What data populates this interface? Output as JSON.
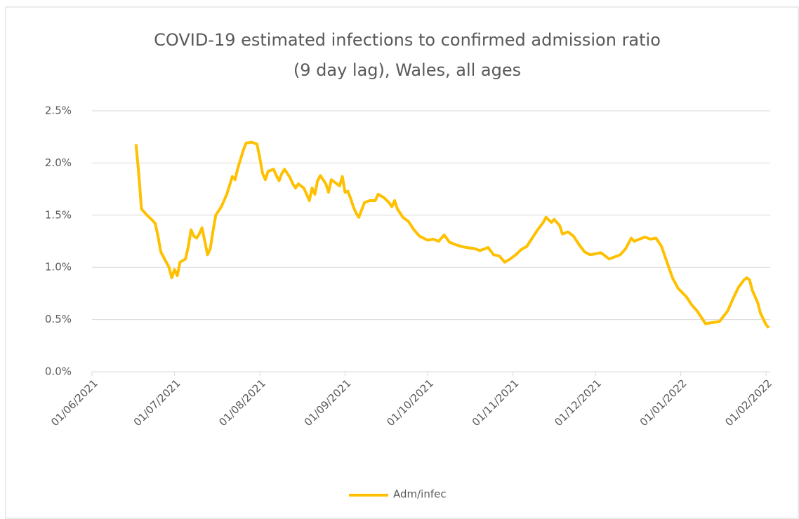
{
  "chart_data": {
    "type": "line",
    "title": "COVID-19 estimated infections to confirmed  admission ratio",
    "subtitle": "(9 day lag), Wales, all ages",
    "x": [
      "2021-06-17",
      "2021-06-18",
      "2021-06-19",
      "2021-06-21",
      "2021-06-23",
      "2021-06-24",
      "2021-06-25",
      "2021-06-26",
      "2021-06-28",
      "2021-06-29",
      "2021-06-30",
      "2021-07-01",
      "2021-07-02",
      "2021-07-03",
      "2021-07-05",
      "2021-07-06",
      "2021-07-07",
      "2021-07-08",
      "2021-07-09",
      "2021-07-10",
      "2021-07-11",
      "2021-07-12",
      "2021-07-13",
      "2021-07-14",
      "2021-07-15",
      "2021-07-16",
      "2021-07-18",
      "2021-07-20",
      "2021-07-22",
      "2021-07-23",
      "2021-07-24",
      "2021-07-26",
      "2021-07-27",
      "2021-07-29",
      "2021-07-31",
      "2021-08-01",
      "2021-08-02",
      "2021-08-03",
      "2021-08-04",
      "2021-08-06",
      "2021-08-07",
      "2021-08-08",
      "2021-08-09",
      "2021-08-10",
      "2021-08-12",
      "2021-08-13",
      "2021-08-14",
      "2021-08-15",
      "2021-08-17",
      "2021-08-18",
      "2021-08-19",
      "2021-08-20",
      "2021-08-21",
      "2021-08-22",
      "2021-08-23",
      "2021-08-25",
      "2021-08-26",
      "2021-08-27",
      "2021-08-29",
      "2021-08-30",
      "2021-08-31",
      "2021-09-01",
      "2021-09-02",
      "2021-09-03",
      "2021-09-04",
      "2021-09-05",
      "2021-09-06",
      "2021-09-07",
      "2021-09-08",
      "2021-09-10",
      "2021-09-12",
      "2021-09-13",
      "2021-09-15",
      "2021-09-17",
      "2021-09-18",
      "2021-09-19",
      "2021-09-20",
      "2021-09-22",
      "2021-09-24",
      "2021-09-26",
      "2021-09-28",
      "2021-10-01",
      "2021-10-03",
      "2021-10-05",
      "2021-10-07",
      "2021-10-09",
      "2021-10-12",
      "2021-10-15",
      "2021-10-18",
      "2021-10-20",
      "2021-10-23",
      "2021-10-25",
      "2021-10-27",
      "2021-10-29",
      "2021-10-31",
      "2021-11-02",
      "2021-11-04",
      "2021-11-06",
      "2021-11-08",
      "2021-11-10",
      "2021-11-12",
      "2021-11-13",
      "2021-11-15",
      "2021-11-16",
      "2021-11-18",
      "2021-11-19",
      "2021-11-21",
      "2021-11-23",
      "2021-11-25",
      "2021-11-27",
      "2021-11-29",
      "2021-12-01",
      "2021-12-03",
      "2021-12-04",
      "2021-12-06",
      "2021-12-08",
      "2021-12-10",
      "2021-12-12",
      "2021-12-14",
      "2021-12-15",
      "2021-12-17",
      "2021-12-19",
      "2021-12-21",
      "2021-12-23",
      "2021-12-25",
      "2021-12-27",
      "2021-12-29",
      "2021-12-31",
      "2022-01-03",
      "2022-01-05",
      "2022-01-07",
      "2022-01-09",
      "2022-01-10",
      "2022-01-12",
      "2022-01-15",
      "2022-01-18",
      "2022-01-20",
      "2022-01-22",
      "2022-01-24",
      "2022-01-25",
      "2022-01-26",
      "2022-01-27",
      "2022-01-29",
      "2022-01-30",
      "2022-02-01",
      "2022-02-02"
    ],
    "series": [
      {
        "name": "Adm/infec",
        "color": "#FFC000",
        "values": [
          2.18,
          1.9,
          1.56,
          1.5,
          1.45,
          1.42,
          1.3,
          1.15,
          1.05,
          1.0,
          0.9,
          0.98,
          0.92,
          1.05,
          1.08,
          1.2,
          1.36,
          1.3,
          1.28,
          1.32,
          1.38,
          1.25,
          1.12,
          1.18,
          1.35,
          1.5,
          1.58,
          1.7,
          1.87,
          1.84,
          1.95,
          2.12,
          2.19,
          2.2,
          2.18,
          2.05,
          1.9,
          1.84,
          1.92,
          1.94,
          1.88,
          1.83,
          1.9,
          1.94,
          1.86,
          1.8,
          1.76,
          1.8,
          1.76,
          1.7,
          1.64,
          1.76,
          1.7,
          1.83,
          1.88,
          1.8,
          1.72,
          1.84,
          1.8,
          1.78,
          1.87,
          1.72,
          1.73,
          1.66,
          1.58,
          1.52,
          1.48,
          1.55,
          1.62,
          1.64,
          1.64,
          1.7,
          1.67,
          1.62,
          1.58,
          1.64,
          1.56,
          1.48,
          1.44,
          1.36,
          1.3,
          1.26,
          1.27,
          1.25,
          1.31,
          1.24,
          1.21,
          1.19,
          1.18,
          1.16,
          1.19,
          1.12,
          1.11,
          1.05,
          1.08,
          1.12,
          1.17,
          1.2,
          1.28,
          1.36,
          1.43,
          1.48,
          1.43,
          1.46,
          1.4,
          1.32,
          1.34,
          1.3,
          1.22,
          1.15,
          1.12,
          1.13,
          1.14,
          1.12,
          1.08,
          1.1,
          1.12,
          1.18,
          1.28,
          1.25,
          1.27,
          1.29,
          1.27,
          1.28,
          1.2,
          1.05,
          0.9,
          0.8,
          0.72,
          0.64,
          0.58,
          0.5,
          0.46,
          0.47,
          0.48,
          0.58,
          0.7,
          0.81,
          0.88,
          0.9,
          0.88,
          0.78,
          0.66,
          0.56,
          0.45,
          0.42
        ]
      }
    ],
    "xlim": [
      "2021-06-01",
      "2022-02-02"
    ],
    "xticks": [
      {
        "value": "2021-06-01",
        "label": "01/06/2021"
      },
      {
        "value": "2021-07-01",
        "label": "01/07/2021"
      },
      {
        "value": "2021-08-01",
        "label": "01/08/2021"
      },
      {
        "value": "2021-09-01",
        "label": "01/09/2021"
      },
      {
        "value": "2021-10-01",
        "label": "01/10/2021"
      },
      {
        "value": "2021-11-01",
        "label": "01/11/2021"
      },
      {
        "value": "2021-12-01",
        "label": "01/12/2021"
      },
      {
        "value": "2022-01-01",
        "label": "01/01/2022"
      },
      {
        "value": "2022-02-01",
        "label": "01/02/2022"
      }
    ],
    "ylim": [
      0,
      2.5
    ],
    "yticks": [
      {
        "value": 0,
        "label": "0.0%"
      },
      {
        "value": 0.5,
        "label": "0.5%"
      },
      {
        "value": 1,
        "label": "1.0%"
      },
      {
        "value": 1.5,
        "label": "1.5%"
      },
      {
        "value": 2,
        "label": "2.0%"
      },
      {
        "value": 2.5,
        "label": "2.5%"
      }
    ],
    "grid": true,
    "legend": "bottom"
  }
}
